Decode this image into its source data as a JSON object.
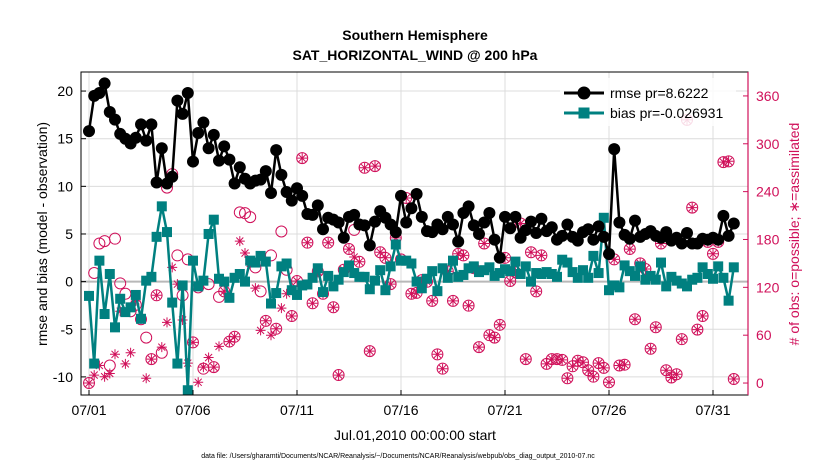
{
  "chart_data": {
    "type": "line",
    "title": "Southern Hemisphere",
    "subtitle": "SAT_HORIZONTAL_WIND @ 200 hPa",
    "xlabel": "Jul.01,2010 00:00:00 start",
    "ylabel": "rmse and bias (model - observation)",
    "y2label": "# of obs: o=possible; ∗=assimilated",
    "footnote": "data file: /Users/gharamti/Documents/NCAR/Reanalysis/~/Documents/NCAR/Reanalysis/webpub/obs_diag_output_2010-07.nc",
    "x_range": [
      0,
      31
    ],
    "x_ticks": [
      0,
      5,
      10,
      15,
      20,
      25,
      30
    ],
    "x_tick_labels": [
      "07/01",
      "07/06",
      "07/11",
      "07/16",
      "07/21",
      "07/26",
      "07/31"
    ],
    "ylim": [
      -11.9,
      22
    ],
    "y_ticks": [
      -10,
      -5,
      0,
      5,
      10,
      15,
      20
    ],
    "y2lim": [
      -15,
      390
    ],
    "y2_ticks": [
      0,
      60,
      120,
      180,
      240,
      300,
      360
    ],
    "grid": true,
    "legend_position": "top-right",
    "colors": {
      "rmse": "#000000",
      "bias": "#008080",
      "obs": "#d0105a",
      "zero_line": "#b8b8b8",
      "grid": "#dcdcdc"
    },
    "series": [
      {
        "name": "rmse pr=8.6222",
        "axis": "left",
        "marker": "circle",
        "x": [
          0,
          0.25,
          0.5,
          0.75,
          1.0,
          1.25,
          1.5,
          1.75,
          2.0,
          2.25,
          2.5,
          2.75,
          3.0,
          3.25,
          3.5,
          3.75,
          4.0,
          4.25,
          4.5,
          4.75,
          5.0,
          5.25,
          5.5,
          5.75,
          6.0,
          6.25,
          6.5,
          6.75,
          7.0,
          7.25,
          7.5,
          7.75,
          8.0,
          8.25,
          8.5,
          8.75,
          9.0,
          9.25,
          9.5,
          9.75,
          10.0,
          10.25,
          10.5,
          10.75,
          11.0,
          11.25,
          11.5,
          11.75,
          12.0,
          12.25,
          12.5,
          12.75,
          13.0,
          13.25,
          13.5,
          13.75,
          14.0,
          14.25,
          14.5,
          14.75,
          15.0,
          15.25,
          15.5,
          15.75,
          16.0,
          16.25,
          16.5,
          16.75,
          17.0,
          17.25,
          17.5,
          17.75,
          18.0,
          18.25,
          18.5,
          18.75,
          19.0,
          19.25,
          19.5,
          19.75,
          20.0,
          20.25,
          20.5,
          20.75,
          21.0,
          21.25,
          21.5,
          21.75,
          22.0,
          22.25,
          22.5,
          22.75,
          23.0,
          23.25,
          23.5,
          23.75,
          24.0,
          24.25,
          24.5,
          24.75,
          25.0,
          25.25,
          25.5,
          25.75,
          26.0,
          26.25,
          26.5,
          26.75,
          27.0,
          27.25,
          27.5,
          27.75,
          28.0,
          28.25,
          28.5,
          28.75,
          29.0,
          29.25,
          29.5,
          29.75,
          30.0,
          30.25,
          30.5,
          30.75,
          31.0
        ],
        "values": [
          15.8,
          19.5,
          19.8,
          20.8,
          17.8,
          17.0,
          15.5,
          15.0,
          14.5,
          15.1,
          16.5,
          14.8,
          16.5,
          10.4,
          14.0,
          10.3,
          11.0,
          19.0,
          17.6,
          19.8,
          12.6,
          15.6,
          16.7,
          14.0,
          15.4,
          12.7,
          14.2,
          12.8,
          10.3,
          12.0,
          10.8,
          10.3,
          10.6,
          10.7,
          11.6,
          9.3,
          13.8,
          11.2,
          9.4,
          8.5,
          9.8,
          9.0,
          7.1,
          7.0,
          8.0,
          5.5,
          6.7,
          6.5,
          6.2,
          4.6,
          6.8,
          7.0,
          6.0,
          5.9,
          3.8,
          6.3,
          7.4,
          6.7,
          6.0,
          5.2,
          9.0,
          6.2,
          7.7,
          9.2,
          6.8,
          5.3,
          5.2,
          6.0,
          5.5,
          6.8,
          6.0,
          4.2,
          7.2,
          7.9,
          5.9,
          5.0,
          6.2,
          7.2,
          4.4,
          2.5,
          6.8,
          5.6,
          6.8,
          4.6,
          5.4,
          6.3,
          5.1,
          6.6,
          5.3,
          5.7,
          4.4,
          4.8,
          6.0,
          4.7,
          4.3,
          5.2,
          5.5,
          4.4,
          5.8,
          4.7,
          2.9,
          13.9,
          6.2,
          4.9,
          4.5,
          6.4,
          4.7,
          5.0,
          5.3,
          4.8,
          4.6,
          5.2,
          4.3,
          4.6,
          4.0,
          5.1,
          4.0,
          4.0,
          4.5,
          4.4,
          4.6,
          4.4,
          6.9,
          4.8,
          6.1
        ]
      },
      {
        "name": "bias pr=-0.026931",
        "axis": "left",
        "marker": "square",
        "x": [
          0,
          0.25,
          0.5,
          0.75,
          1.0,
          1.25,
          1.5,
          1.75,
          2.0,
          2.25,
          2.5,
          2.75,
          3.0,
          3.25,
          3.5,
          3.75,
          4.0,
          4.25,
          4.5,
          4.75,
          5.0,
          5.25,
          5.5,
          5.75,
          6.0,
          6.25,
          6.5,
          6.75,
          7.0,
          7.25,
          7.5,
          7.75,
          8.0,
          8.25,
          8.5,
          8.75,
          9.0,
          9.25,
          9.5,
          9.75,
          10.0,
          10.25,
          10.5,
          10.75,
          11.0,
          11.25,
          11.5,
          11.75,
          12.0,
          12.25,
          12.5,
          12.75,
          13.0,
          13.25,
          13.5,
          13.75,
          14.0,
          14.25,
          14.5,
          14.75,
          15.0,
          15.25,
          15.5,
          15.75,
          16.0,
          16.25,
          16.5,
          16.75,
          17.0,
          17.25,
          17.5,
          17.75,
          18.0,
          18.25,
          18.5,
          18.75,
          19.0,
          19.25,
          19.5,
          19.75,
          20.0,
          20.25,
          20.5,
          20.75,
          21.0,
          21.25,
          21.5,
          21.75,
          22.0,
          22.25,
          22.5,
          22.75,
          23.0,
          23.25,
          23.5,
          23.75,
          24.0,
          24.25,
          24.5,
          24.75,
          25.0,
          25.25,
          25.5,
          25.75,
          26.0,
          26.25,
          26.5,
          26.75,
          27.0,
          27.25,
          27.5,
          27.75,
          28.0,
          28.25,
          28.5,
          28.75,
          29.0,
          29.25,
          29.5,
          29.75,
          30.0,
          30.25,
          30.5,
          30.75,
          31.0
        ],
        "values": [
          -1.5,
          -8.6,
          2.2,
          -3.4,
          0.8,
          -4.8,
          -1.8,
          -3.2,
          -2.7,
          -1.4,
          -3.9,
          0.1,
          0.5,
          4.7,
          7.9,
          5.2,
          -2.2,
          -8.6,
          -0.4,
          -11.4,
          2.2,
          -0.5,
          0.1,
          5.0,
          6.5,
          0.3,
          0.0,
          -1.7,
          0.4,
          0.8,
          0.0,
          2.2,
          2.0,
          2.7,
          2.1,
          -2.3,
          -1.2,
          1.6,
          1.9,
          -0.9,
          -1.4,
          -0.4,
          -0.3,
          0.4,
          1.4,
          -1.1,
          0.6,
          -0.5,
          0.2,
          1.0,
          1.7,
          0.9,
          0.5,
          0.5,
          -0.8,
          0.1,
          1.2,
          -0.9,
          1.6,
          3.9,
          2.2,
          2.2,
          1.9,
          0.0,
          -0.7,
          0.3,
          1.1,
          -1.0,
          1.4,
          0.4,
          2.2,
          0.5,
          0.7,
          1.4,
          1.6,
          1.0,
          1.2,
          1.5,
          0.6,
          0.9,
          1.3,
          1.1,
          2.1,
          0.8,
          1.6,
          0.0,
          0.9,
          0.8,
          1.0,
          0.8,
          0.5,
          2.3,
          2.0,
          1.0,
          0.4,
          1.2,
          0.4,
          2.7,
          0.9,
          6.7,
          -0.9,
          -0.4,
          -0.6,
          1.7,
          1.1,
          0.6,
          1.6,
          0.2,
          0.6,
          0.2,
          2.0,
          -0.5,
          0.5,
          0.1,
          -0.2,
          -0.5,
          0.2,
          0.4,
          1.5,
          0.8,
          0.3,
          1.6,
          0.4,
          -2.0,
          1.5
        ]
      },
      {
        "name": "possible",
        "axis": "right",
        "marker": "open-circle",
        "x": [
          0,
          0.25,
          0.5,
          0.75,
          1.0,
          1.25,
          1.5,
          1.75,
          2.0,
          2.25,
          2.5,
          2.75,
          3.0,
          3.25,
          3.5,
          3.75,
          4.0,
          4.25,
          4.5,
          4.75,
          5.0,
          5.25,
          5.5,
          5.75,
          6.0,
          6.25,
          6.5,
          6.75,
          7.0,
          7.25,
          7.5,
          7.75,
          8.0,
          8.25,
          8.5,
          8.75,
          9.0,
          9.25,
          9.5,
          9.75,
          10.0,
          10.25,
          10.5,
          10.75,
          11.0,
          11.25,
          11.5,
          11.75,
          12.0,
          12.25,
          12.5,
          12.75,
          13.0,
          13.25,
          13.5,
          13.75,
          14.0,
          14.25,
          14.5,
          14.75,
          15.0,
          15.25,
          15.5,
          15.75,
          16.0,
          16.25,
          16.5,
          16.75,
          17.0,
          17.25,
          17.5,
          17.75,
          18.0,
          18.25,
          18.5,
          18.75,
          19.0,
          19.25,
          19.5,
          19.75,
          20.0,
          20.25,
          20.5,
          20.75,
          21.0,
          21.25,
          21.5,
          21.75,
          22.0,
          22.25,
          22.5,
          22.75,
          23.0,
          23.25,
          23.5,
          23.75,
          24.0,
          24.25,
          24.5,
          24.75,
          25.0,
          25.25,
          25.5,
          25.75,
          26.0,
          26.25,
          26.5,
          26.75,
          27.0,
          27.25,
          27.5,
          27.75,
          28.0,
          28.25,
          28.5,
          28.75,
          29.0,
          29.25,
          29.5,
          29.75,
          30.0,
          30.25,
          30.5,
          30.75,
          31.0
        ],
        "values": [
          0,
          138,
          175,
          178,
          22,
          181,
          125,
          112,
          90,
          98,
          80,
          57,
          30,
          110,
          38,
          245,
          262,
          160,
          110,
          155,
          51,
          120,
          18,
          124,
          20,
          108,
          115,
          52,
          58,
          214,
          213,
          208,
          145,
          115,
          78,
          160,
          68,
          190,
          142,
          84,
          128,
          282,
          176,
          100,
          140,
          112,
          176,
          95,
          10,
          142,
          168,
          192,
          152,
          270,
          40,
          272,
          164,
          157,
          124,
          182,
          155,
          232,
          112,
          113,
          129,
          127,
          103,
          36,
          18,
          140,
          103,
          162,
          160,
          97,
          144,
          45,
          175,
          60,
          57,
          73,
          157,
          128,
          139,
          200,
          30,
          164,
          115,
          160,
          24,
          30,
          30,
          29,
          6,
          21,
          28,
          26,
          16,
          8,
          25,
          19,
          1,
          155,
          22,
          23,
          168,
          80,
          150,
          143,
          43,
          70,
          175,
          16,
          7,
          11,
          55,
          330,
          220,
          67,
          84,
          177,
          162,
          177,
          277,
          278,
          5
        ]
      },
      {
        "name": "assimilated",
        "axis": "right",
        "marker": "asterisk",
        "x": [
          0,
          0.25,
          0.5,
          0.75,
          1.0,
          1.25,
          1.5,
          1.75,
          2.0,
          2.25,
          2.5,
          2.75,
          3.0,
          3.25,
          3.5,
          3.75,
          4.0,
          4.25,
          4.5,
          4.75,
          5.0,
          5.25,
          5.5,
          5.75,
          6.0,
          6.25,
          6.5,
          6.75,
          7.0,
          7.25,
          7.5,
          7.75,
          8.0,
          8.25,
          8.5,
          8.75,
          9.0,
          9.25,
          9.5,
          9.75,
          10.0,
          10.25,
          10.5,
          10.75,
          11.0,
          11.25,
          11.5,
          11.75,
          12.0,
          12.25,
          12.5,
          12.75,
          13.0,
          13.25,
          13.5,
          13.75,
          14.0,
          14.25,
          14.5,
          14.75,
          15.0,
          15.25,
          15.5,
          15.75,
          16.0,
          16.25,
          16.5,
          16.75,
          17.0,
          17.25,
          17.5,
          17.75,
          18.0,
          18.25,
          18.5,
          18.75,
          19.0,
          19.25,
          19.5,
          19.75,
          20.0,
          20.25,
          20.5,
          20.75,
          21.0,
          21.25,
          21.5,
          21.75,
          22.0,
          22.25,
          22.5,
          22.75,
          23.0,
          23.25,
          23.5,
          23.75,
          24.0,
          24.25,
          24.5,
          24.75,
          25.0,
          25.25,
          25.5,
          25.75,
          26.0,
          26.25,
          26.5,
          26.75,
          27.0,
          27.25,
          27.5,
          27.75,
          28.0,
          28.25,
          28.5,
          28.75,
          29.0,
          29.25,
          29.5,
          29.75,
          30.0,
          30.25,
          30.5,
          30.75,
          31.0
        ],
        "values": [
          0,
          10,
          22,
          8,
          12,
          36,
          90,
          24,
          38,
          103,
          80,
          6,
          30,
          110,
          45,
          76,
          145,
          124,
          79,
          25,
          51,
          1,
          20,
          32,
          20,
          46,
          115,
          52,
          58,
          178,
          163,
          150,
          119,
          66,
          78,
          60,
          68,
          94,
          112,
          84,
          128,
          282,
          176,
          100,
          140,
          112,
          176,
          95,
          10,
          142,
          168,
          158,
          152,
          270,
          40,
          272,
          164,
          157,
          124,
          182,
          155,
          232,
          112,
          113,
          129,
          127,
          103,
          36,
          18,
          140,
          103,
          162,
          160,
          97,
          144,
          45,
          175,
          60,
          57,
          73,
          157,
          128,
          139,
          200,
          30,
          164,
          115,
          160,
          24,
          30,
          30,
          29,
          6,
          21,
          28,
          26,
          16,
          8,
          25,
          19,
          1,
          155,
          22,
          23,
          168,
          80,
          150,
          143,
          43,
          70,
          175,
          16,
          7,
          11,
          55,
          330,
          220,
          67,
          84,
          177,
          162,
          177,
          277,
          278,
          5
        ]
      }
    ]
  }
}
